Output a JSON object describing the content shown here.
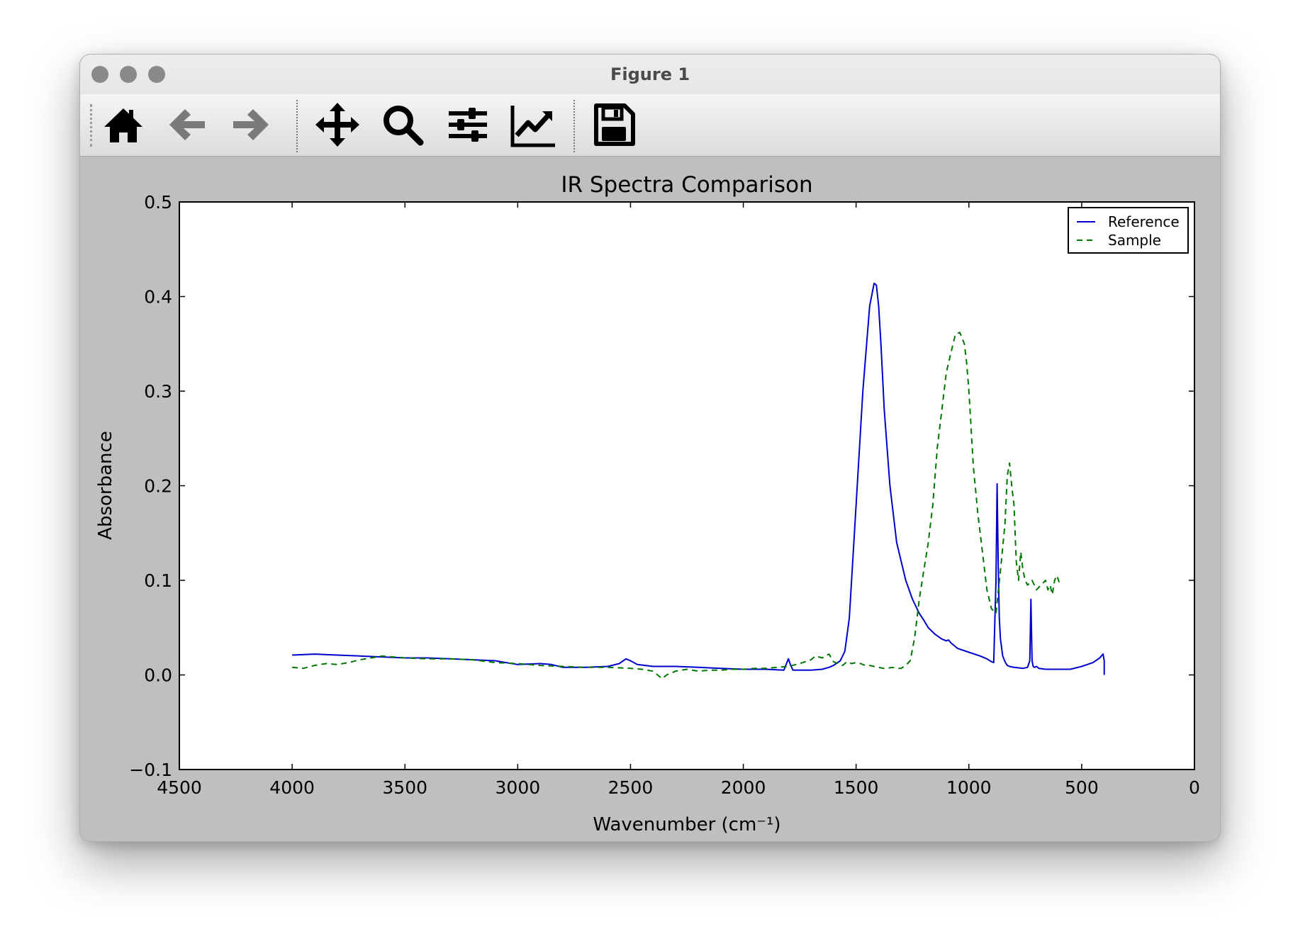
{
  "window": {
    "title": "Figure 1"
  },
  "toolbar": {
    "buttons": [
      {
        "name": "home-button",
        "icon": "home-icon",
        "enabled": true
      },
      {
        "name": "back-button",
        "icon": "arrow-left-icon",
        "enabled": false
      },
      {
        "name": "forward-button",
        "icon": "arrow-right-icon",
        "enabled": false
      },
      {
        "name": "pan-button",
        "icon": "move-arrows-icon",
        "enabled": true
      },
      {
        "name": "zoom-button",
        "icon": "magnifier-icon",
        "enabled": true
      },
      {
        "name": "configure-subplots-button",
        "icon": "sliders-icon",
        "enabled": true
      },
      {
        "name": "edit-axis-button",
        "icon": "line-chart-icon",
        "enabled": true
      },
      {
        "name": "save-button",
        "icon": "floppy-disk-icon",
        "enabled": true
      }
    ]
  },
  "chart_data": {
    "type": "line",
    "title": "IR Spectra Comparison",
    "xlabel": "Wavenumber (cm⁻¹)",
    "ylabel": "Absorbance",
    "xlim": [
      4500,
      0
    ],
    "ylim": [
      -0.1,
      0.5
    ],
    "x_ticks": [
      4500,
      4000,
      3500,
      3000,
      2500,
      2000,
      1500,
      1000,
      500,
      0
    ],
    "x_tick_labels": [
      "4500",
      "4000",
      "3500",
      "3000",
      "2500",
      "2000",
      "1500",
      "1000",
      "500",
      "0"
    ],
    "y_ticks": [
      0.5,
      0.4,
      0.3,
      0.2,
      0.1,
      0.0,
      -0.1
    ],
    "y_tick_labels": [
      "0.5",
      "0.4",
      "0.3",
      "0.2",
      "0.1",
      "0.0",
      "−0.1"
    ],
    "grid": false,
    "legend_position": "top-right",
    "series": [
      {
        "name": "Reference",
        "style": "solid",
        "color": "#0000cc",
        "x": [
          4000,
          3900,
          3800,
          3700,
          3600,
          3500,
          3400,
          3300,
          3200,
          3100,
          3000,
          2900,
          2850,
          2800,
          2700,
          2600,
          2550,
          2520,
          2500,
          2470,
          2400,
          2300,
          2200,
          2100,
          2000,
          1900,
          1820,
          1800,
          1790,
          1780,
          1700,
          1650,
          1620,
          1600,
          1570,
          1550,
          1530,
          1500,
          1470,
          1440,
          1420,
          1410,
          1400,
          1390,
          1375,
          1350,
          1320,
          1280,
          1250,
          1220,
          1200,
          1180,
          1150,
          1120,
          1100,
          1090,
          1080,
          1050,
          1000,
          950,
          920,
          900,
          890,
          880,
          875,
          870,
          865,
          860,
          850,
          840,
          830,
          820,
          800,
          760,
          740,
          730,
          725,
          720,
          715,
          710,
          700,
          690,
          660,
          600,
          550,
          500,
          450,
          420,
          405,
          400,
          400
        ],
        "y": [
          0.021,
          0.022,
          0.021,
          0.02,
          0.019,
          0.018,
          0.018,
          0.017,
          0.016,
          0.015,
          0.011,
          0.012,
          0.011,
          0.008,
          0.008,
          0.009,
          0.012,
          0.017,
          0.015,
          0.011,
          0.009,
          0.009,
          0.008,
          0.007,
          0.006,
          0.006,
          0.005,
          0.017,
          0.01,
          0.005,
          0.005,
          0.006,
          0.008,
          0.01,
          0.015,
          0.025,
          0.06,
          0.18,
          0.3,
          0.39,
          0.414,
          0.412,
          0.39,
          0.35,
          0.28,
          0.2,
          0.14,
          0.1,
          0.08,
          0.065,
          0.058,
          0.05,
          0.043,
          0.038,
          0.036,
          0.037,
          0.034,
          0.028,
          0.024,
          0.02,
          0.017,
          0.014,
          0.013,
          0.1,
          0.202,
          0.12,
          0.06,
          0.038,
          0.02,
          0.014,
          0.01,
          0.009,
          0.008,
          0.007,
          0.008,
          0.015,
          0.08,
          0.015,
          0.009,
          0.008,
          0.009,
          0.007,
          0.006,
          0.006,
          0.006,
          0.009,
          0.013,
          0.018,
          0.022,
          0.015,
          0.0
        ]
      },
      {
        "name": "Sample",
        "style": "dashed",
        "color": "#007700",
        "x": [
          4000,
          3950,
          3900,
          3850,
          3800,
          3750,
          3700,
          3650,
          3600,
          3500,
          3400,
          3300,
          3200,
          3100,
          3000,
          2900,
          2800,
          2700,
          2600,
          2500,
          2450,
          2400,
          2380,
          2360,
          2340,
          2300,
          2250,
          2200,
          2150,
          2100,
          2050,
          2000,
          1950,
          1900,
          1850,
          1800,
          1750,
          1700,
          1680,
          1650,
          1620,
          1600,
          1580,
          1560,
          1540,
          1520,
          1500,
          1480,
          1460,
          1440,
          1420,
          1400,
          1380,
          1360,
          1340,
          1320,
          1300,
          1280,
          1260,
          1240,
          1220,
          1200,
          1180,
          1160,
          1140,
          1120,
          1100,
          1080,
          1060,
          1040,
          1020,
          1010,
          1000,
          990,
          980,
          960,
          940,
          920,
          900,
          880,
          860,
          840,
          830,
          820,
          810,
          800,
          790,
          780,
          770,
          760,
          750,
          740,
          720,
          700,
          680,
          660,
          650,
          640,
          630,
          620,
          610,
          600
        ],
        "y": [
          0.008,
          0.007,
          0.01,
          0.012,
          0.011,
          0.013,
          0.016,
          0.018,
          0.02,
          0.018,
          0.017,
          0.017,
          0.016,
          0.013,
          0.012,
          0.01,
          0.009,
          0.008,
          0.008,
          0.007,
          0.006,
          0.004,
          0.0,
          -0.004,
          0.0,
          0.004,
          0.006,
          0.004,
          0.005,
          0.005,
          0.006,
          0.006,
          0.007,
          0.007,
          0.008,
          0.009,
          0.012,
          0.016,
          0.02,
          0.018,
          0.022,
          0.014,
          0.012,
          0.01,
          0.014,
          0.012,
          0.013,
          0.012,
          0.01,
          0.01,
          0.009,
          0.008,
          0.007,
          0.007,
          0.008,
          0.007,
          0.007,
          0.01,
          0.015,
          0.04,
          0.08,
          0.11,
          0.14,
          0.18,
          0.24,
          0.28,
          0.32,
          0.34,
          0.36,
          0.362,
          0.35,
          0.33,
          0.3,
          0.26,
          0.22,
          0.17,
          0.13,
          0.09,
          0.07,
          0.065,
          0.11,
          0.16,
          0.21,
          0.224,
          0.2,
          0.18,
          0.12,
          0.1,
          0.13,
          0.11,
          0.1,
          0.095,
          0.1,
          0.09,
          0.095,
          0.1,
          0.09,
          0.095,
          0.085,
          0.1,
          0.105,
          0.098
        ]
      }
    ]
  }
}
